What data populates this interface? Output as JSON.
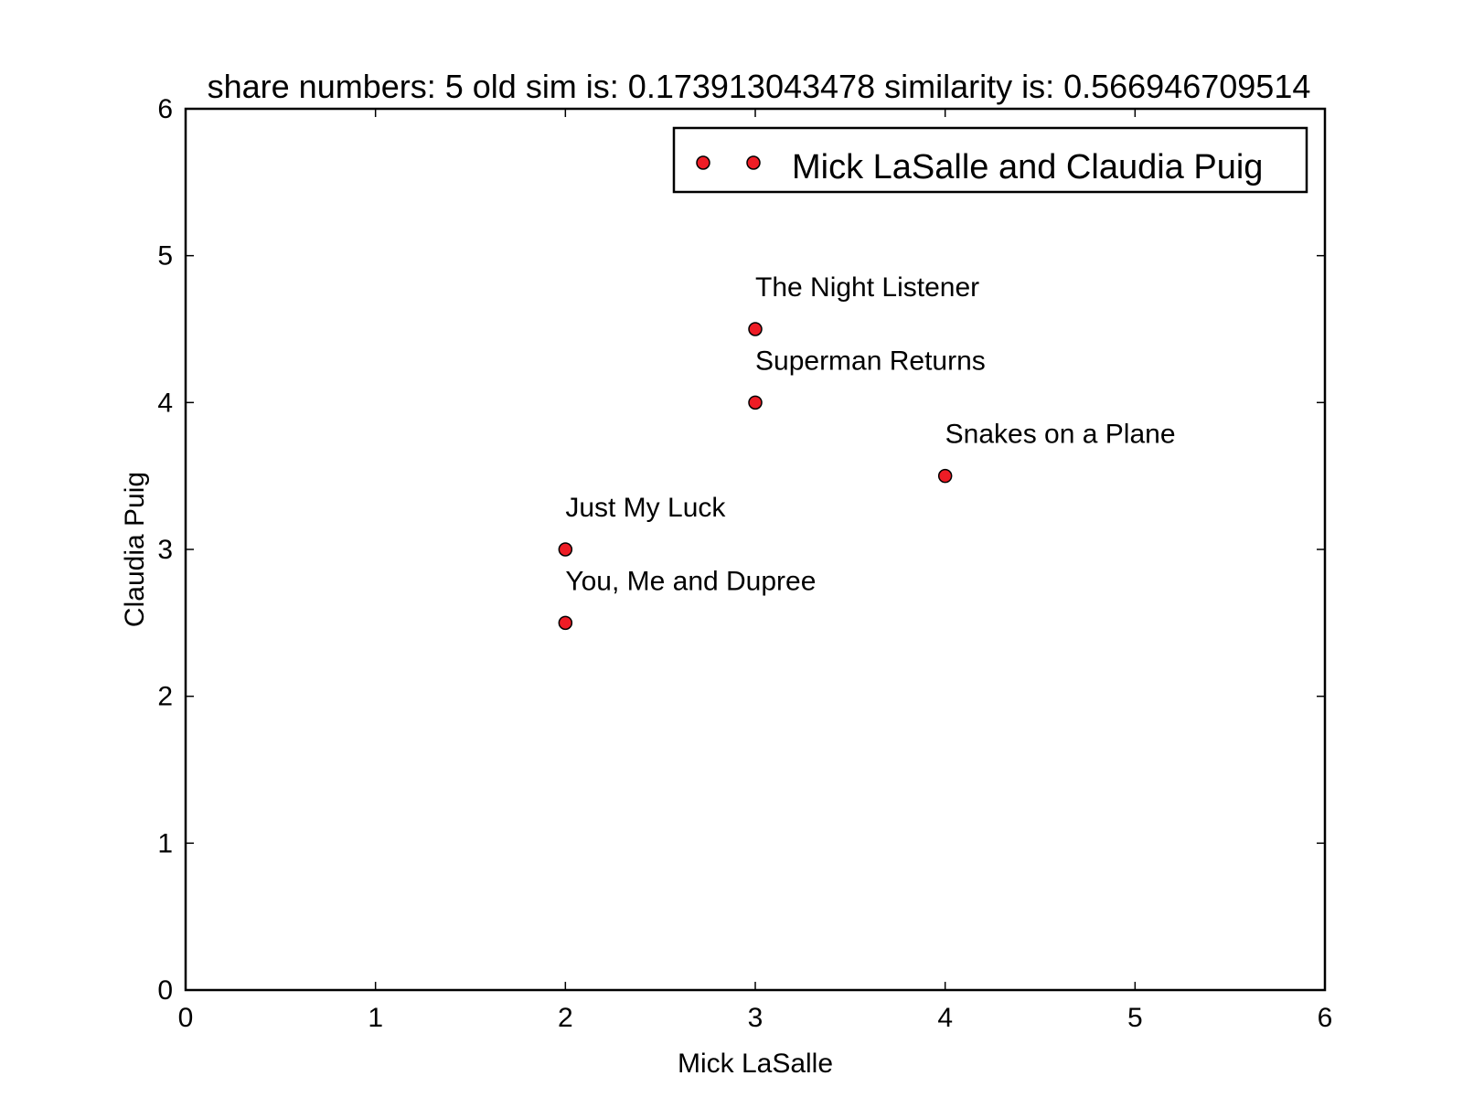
{
  "chart_data": {
    "type": "scatter",
    "title": "share numbers: 5 old sim is: 0.173913043478 similarity is: 0.566946709514",
    "xlabel": "Mick LaSalle",
    "ylabel": "Claudia Puig",
    "xlim": [
      0,
      6
    ],
    "ylim": [
      0,
      6
    ],
    "x_ticks": [
      "0",
      "1",
      "2",
      "3",
      "4",
      "5",
      "6"
    ],
    "y_ticks": [
      "0",
      "1",
      "2",
      "3",
      "4",
      "5",
      "6"
    ],
    "grid": false,
    "legend_position": "top-right",
    "marker_color": "#ee1c25",
    "marker_edge_color": "#000000",
    "series": [
      {
        "name": "Mick LaSalle and Claudia Puig",
        "points": [
          {
            "label": "The Night Listener",
            "x": 3,
            "y": 4.5
          },
          {
            "label": "Superman Returns",
            "x": 3,
            "y": 4.0
          },
          {
            "label": "Snakes on a Plane",
            "x": 4,
            "y": 3.5
          },
          {
            "label": "Just My Luck",
            "x": 2,
            "y": 3.0
          },
          {
            "label": "You, Me and Dupree",
            "x": 2,
            "y": 2.5
          }
        ]
      }
    ]
  }
}
